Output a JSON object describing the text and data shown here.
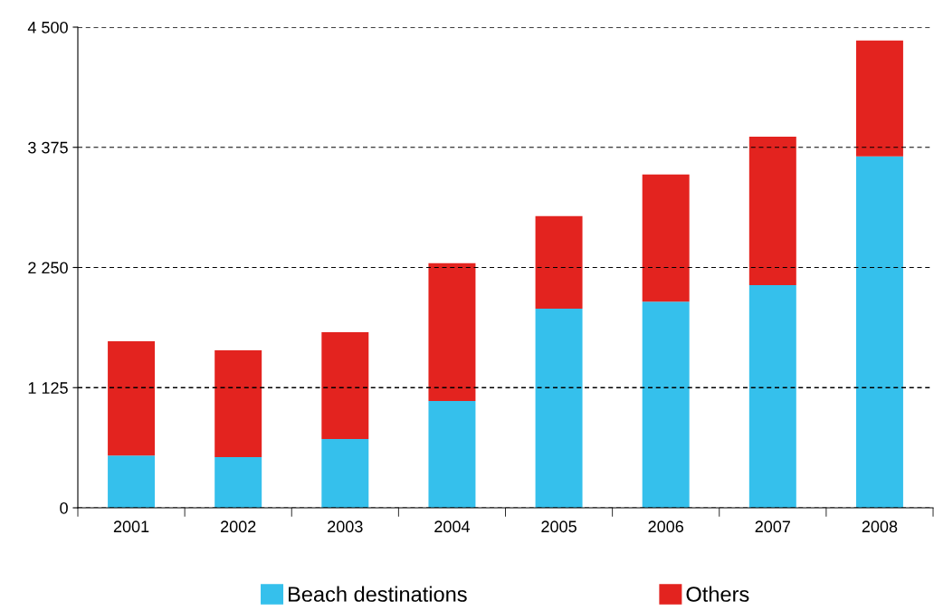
{
  "chart_data": {
    "type": "bar",
    "stacked": true,
    "categories": [
      "2001",
      "2002",
      "2003",
      "2004",
      "2005",
      "2006",
      "2007",
      "2008"
    ],
    "series": [
      {
        "name": "Beach destinations",
        "color": "#35c0ec",
        "values": [
          490,
          475,
          645,
          1000,
          1865,
          1930,
          2085,
          3290
        ]
      },
      {
        "name": "Others",
        "color": "#e3231f",
        "values": [
          1070,
          1000,
          1000,
          1290,
          865,
          1190,
          1390,
          1085
        ]
      }
    ],
    "ylim": [
      0,
      4500
    ],
    "yticks": [
      0,
      {
        "value": 1125,
        "label": "1 125"
      },
      {
        "value": 2250,
        "label": "2 250"
      },
      {
        "value": 3375,
        "label": "3 375"
      },
      {
        "value": 4500,
        "label": "4 500"
      }
    ],
    "grid": "y",
    "legend": "bottom"
  }
}
